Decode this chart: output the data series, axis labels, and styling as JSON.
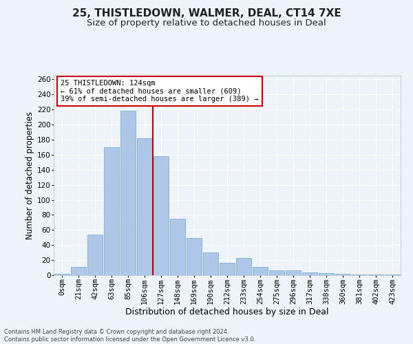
{
  "title1": "25, THISTLEDOWN, WALMER, DEAL, CT14 7XE",
  "title2": "Size of property relative to detached houses in Deal",
  "xlabel": "Distribution of detached houses by size in Deal",
  "ylabel": "Number of detached properties",
  "bar_labels": [
    "0sqm",
    "21sqm",
    "42sqm",
    "63sqm",
    "85sqm",
    "106sqm",
    "127sqm",
    "148sqm",
    "169sqm",
    "190sqm",
    "212sqm",
    "233sqm",
    "254sqm",
    "275sqm",
    "296sqm",
    "317sqm",
    "338sqm",
    "360sqm",
    "381sqm",
    "402sqm",
    "423sqm"
  ],
  "bar_heights": [
    2,
    11,
    54,
    170,
    218,
    182,
    158,
    75,
    49,
    30,
    16,
    23,
    11,
    6,
    6,
    4,
    3,
    2,
    1,
    1,
    1
  ],
  "bar_color": "#aec6e8",
  "bar_edge_color": "#7bafd4",
  "bg_color": "#eef3fa",
  "grid_color": "#ffffff",
  "vline_x_idx": 6,
  "vline_color": "#cc0000",
  "annotation_text": "25 THISTLEDOWN: 124sqm\n← 61% of detached houses are smaller (609)\n39% of semi-detached houses are larger (389) →",
  "annotation_box_color": "#ffffff",
  "annotation_box_edge_color": "#cc0000",
  "ylim": [
    0,
    265
  ],
  "yticks": [
    0,
    20,
    40,
    60,
    80,
    100,
    120,
    140,
    160,
    180,
    200,
    220,
    240,
    260
  ],
  "footer1": "Contains HM Land Registry data © Crown copyright and database right 2024.",
  "footer2": "Contains public sector information licensed under the Open Government Licence v3.0.",
  "title1_fontsize": 11,
  "title2_fontsize": 9.5,
  "xlabel_fontsize": 9,
  "ylabel_fontsize": 8.5,
  "tick_fontsize": 7.5,
  "annot_fontsize": 7.5,
  "footer_fontsize": 6
}
